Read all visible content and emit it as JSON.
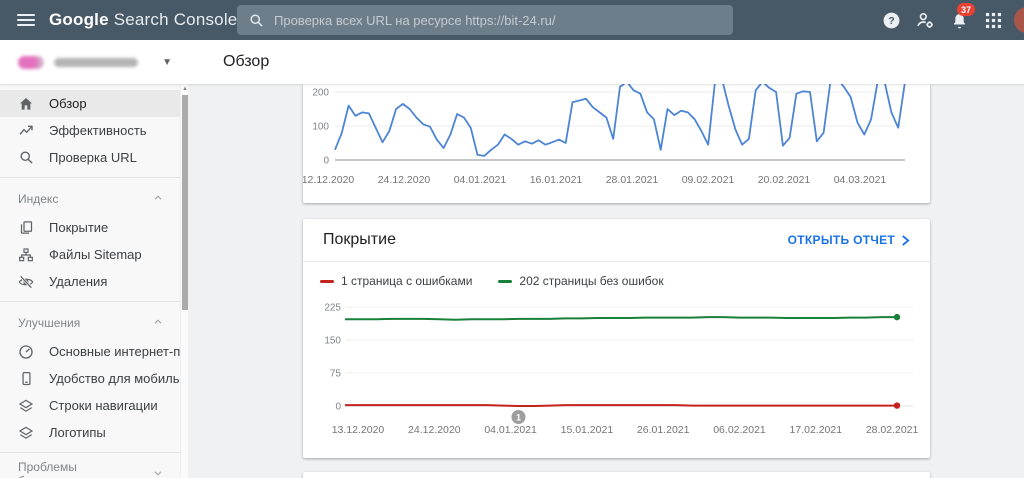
{
  "topbar": {
    "logo_primary": "Google",
    "logo_secondary": "Search Console",
    "search_placeholder": "Проверка всех URL на ресурсе https://bit-24.ru/",
    "notification_count": "37"
  },
  "header": {
    "page_title": "Обзор"
  },
  "sidebar": {
    "rows": [
      {
        "type": "item",
        "icon": "home",
        "label": "Обзор",
        "selected": true
      },
      {
        "type": "item",
        "icon": "performance",
        "label": "Эффективность"
      },
      {
        "type": "item",
        "icon": "url-inspect",
        "label": "Проверка URL"
      },
      {
        "type": "divider"
      },
      {
        "type": "section",
        "label": "Индекс",
        "state": "expanded"
      },
      {
        "type": "item",
        "icon": "coverage",
        "label": "Покрытие"
      },
      {
        "type": "item",
        "icon": "sitemap",
        "label": "Файлы Sitemap"
      },
      {
        "type": "item",
        "icon": "removals",
        "label": "Удаления"
      },
      {
        "type": "divider"
      },
      {
        "type": "section",
        "label": "Улучшения",
        "state": "expanded"
      },
      {
        "type": "item",
        "icon": "core-web-vitals",
        "label": "Основные интернет-показ…"
      },
      {
        "type": "item",
        "icon": "mobile",
        "label": "Удобство для мобильных"
      },
      {
        "type": "item",
        "icon": "breadcrumbs",
        "label": "Строки навигации"
      },
      {
        "type": "item",
        "icon": "logos",
        "label": "Логотипы"
      },
      {
        "type": "divider"
      },
      {
        "type": "section",
        "label": "Проблемы безопасности",
        "state": "collapsed"
      }
    ]
  },
  "coverage_card": {
    "title": "Покрытие",
    "open_report_label": "ОТКРЫТЬ ОТЧЕТ",
    "legend": [
      {
        "label": "1 страница с ошибками",
        "color": "#c5221f"
      },
      {
        "label": "202 страницы без ошибок",
        "color": "#188038"
      }
    ]
  },
  "chart_data": [
    {
      "type": "line",
      "id": "performance-overview",
      "title": "",
      "line_color": "#4c84d6",
      "y_ticks": [
        0,
        100,
        200
      ],
      "ylim": [
        0,
        220
      ],
      "grid": true,
      "x_labels": [
        "12.12.2020",
        "24.12.2020",
        "04.01.2021",
        "16.01.2021",
        "28.01.2021",
        "09.02.2021",
        "20.02.2021",
        "04.03.2021"
      ],
      "values": [
        30,
        80,
        160,
        130,
        140,
        137,
        95,
        52,
        85,
        150,
        165,
        150,
        125,
        105,
        98,
        60,
        35,
        75,
        135,
        125,
        95,
        15,
        12,
        30,
        45,
        75,
        62,
        45,
        55,
        48,
        58,
        45,
        52,
        60,
        50,
        170,
        175,
        180,
        155,
        140,
        125,
        62,
        215,
        230,
        205,
        195,
        140,
        120,
        30,
        150,
        132,
        145,
        140,
        120,
        85,
        45,
        230,
        240,
        160,
        90,
        45,
        62,
        205,
        230,
        212,
        200,
        42,
        65,
        195,
        202,
        200,
        55,
        80,
        230,
        240,
        215,
        185,
        110,
        75,
        120,
        235,
        230,
        140,
        95,
        230
      ],
      "note": "top of peaks clipped by scrolled card edge"
    },
    {
      "type": "line",
      "id": "coverage",
      "title": "Покрытие",
      "y_ticks": [
        0,
        75,
        150,
        225
      ],
      "ylim": [
        0,
        225
      ],
      "grid": true,
      "x_labels": [
        "13.12.2020",
        "24.12.2020",
        "04.01.2021",
        "15.01.2021",
        "26.01.2021",
        "06.02.2021",
        "17.02.2021",
        "28.02.2021"
      ],
      "series": [
        {
          "name": "202 страницы без ошибок",
          "color": "#188038",
          "current": 202,
          "values": [
            197,
            197,
            197,
            198,
            198,
            198,
            197,
            196,
            197,
            197,
            197,
            198,
            198,
            198,
            199,
            199,
            200,
            200,
            200,
            201,
            201,
            201,
            201,
            202,
            202,
            201,
            201,
            201,
            200,
            200,
            200,
            200,
            201,
            201,
            202,
            202
          ]
        },
        {
          "name": "1 страница с ошибками",
          "color": "#c5221f",
          "current": 1,
          "values": [
            2,
            2,
            2,
            2,
            2,
            2,
            2,
            2,
            2,
            2,
            1,
            0,
            0,
            1,
            2,
            2,
            2,
            2,
            2,
            2,
            2,
            2,
            1,
            1,
            1,
            1,
            1,
            1,
            1,
            1,
            1,
            1,
            1,
            1,
            1,
            1
          ]
        }
      ],
      "annotation": {
        "label": "1",
        "index": 11
      }
    }
  ],
  "colors": {
    "topbar_bg": "#475866",
    "accent_blue": "#1a73e8",
    "badge_red": "#e94235",
    "annotation_gray": "#9e9e9e",
    "axis_text": "#80868b"
  }
}
